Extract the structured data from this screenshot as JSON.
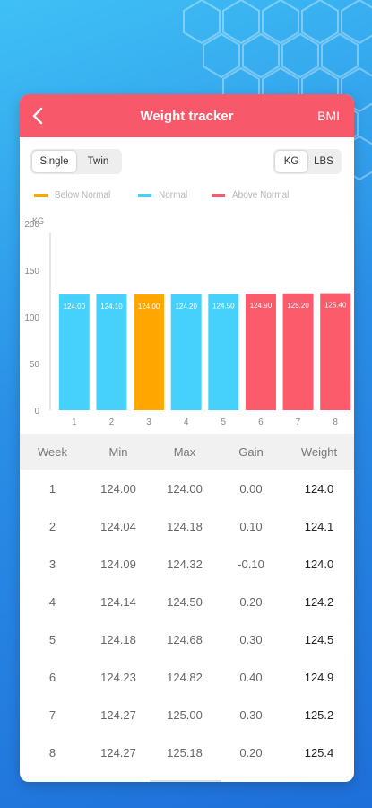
{
  "header": {
    "title": "Weight tracker",
    "right_action": "BMI"
  },
  "mode_toggle": {
    "options": [
      "Single",
      "Twin"
    ],
    "selected": "Single"
  },
  "unit_toggle": {
    "options": [
      "KG",
      "LBS"
    ],
    "selected": "KG"
  },
  "legend": [
    {
      "label": "Below Normal",
      "color": "#ffa600"
    },
    {
      "label": "Normal",
      "color": "#45d1fb"
    },
    {
      "label": "Above Normal",
      "color": "#fb5b6a"
    }
  ],
  "chart_data": {
    "type": "bar",
    "ylabel": "KG",
    "ylim": [
      0,
      200
    ],
    "yticks": [
      0,
      50,
      100,
      150,
      200
    ],
    "categories": [
      "1",
      "2",
      "3",
      "4",
      "5",
      "6",
      "7",
      "8"
    ],
    "values": [
      124.0,
      124.1,
      124.0,
      124.2,
      124.5,
      124.9,
      125.2,
      125.4
    ],
    "labels": [
      "124.00",
      "124.10",
      "124.00",
      "124.20",
      "124.50",
      "124.90",
      "125.20",
      "125.40"
    ],
    "status": [
      "Normal",
      "Normal",
      "Below Normal",
      "Normal",
      "Normal",
      "Above Normal",
      "Above Normal",
      "Above Normal"
    ],
    "grid": false
  },
  "table": {
    "headers": [
      "Week",
      "Min",
      "Max",
      "Gain",
      "Weight"
    ],
    "rows": [
      [
        "1",
        "124.00",
        "124.00",
        "0.00",
        "124.0"
      ],
      [
        "2",
        "124.04",
        "124.18",
        "0.10",
        "124.1"
      ],
      [
        "3",
        "124.09",
        "124.32",
        "-0.10",
        "124.0"
      ],
      [
        "4",
        "124.14",
        "124.50",
        "0.20",
        "124.2"
      ],
      [
        "5",
        "124.18",
        "124.68",
        "0.30",
        "124.5"
      ],
      [
        "6",
        "124.23",
        "124.82",
        "0.40",
        "124.9"
      ],
      [
        "7",
        "124.27",
        "125.00",
        "0.30",
        "125.2"
      ],
      [
        "8",
        "124.27",
        "125.18",
        "0.20",
        "125.4"
      ]
    ]
  },
  "icons": {
    "back": "chevron-left-icon"
  }
}
